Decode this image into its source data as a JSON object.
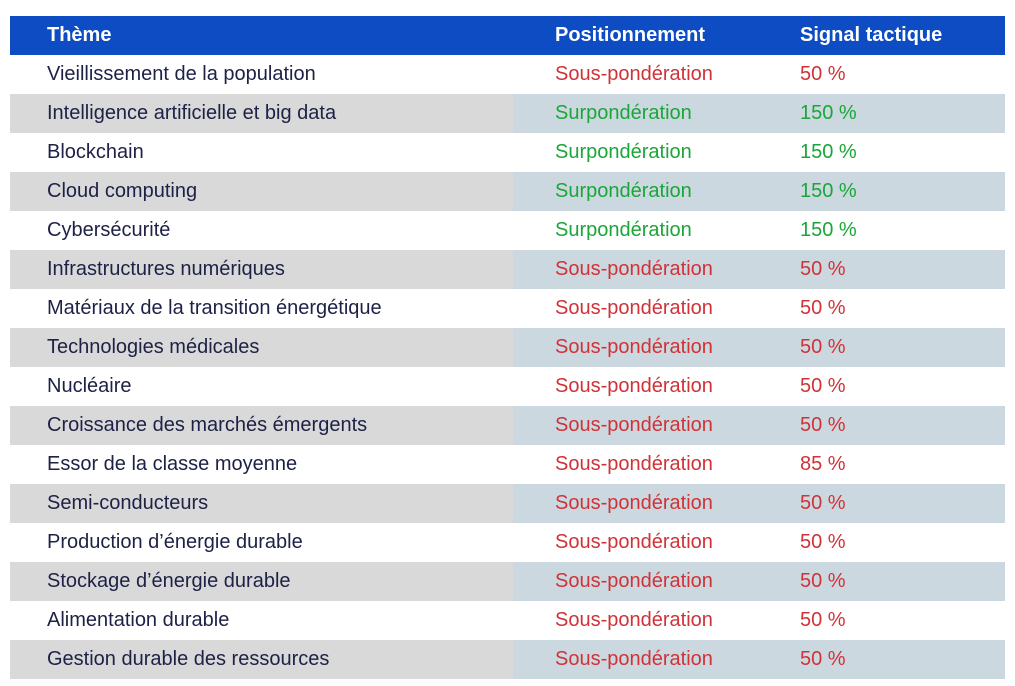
{
  "table": {
    "columns": [
      {
        "key": "theme",
        "label": "Thème"
      },
      {
        "key": "positionnement",
        "label": "Positionnement"
      },
      {
        "key": "signal",
        "label": "Signal tactique"
      }
    ],
    "rows": [
      {
        "theme": "Vieillissement de la population",
        "positionnement": "Sous-pondération",
        "signal": "50 %",
        "status": "under"
      },
      {
        "theme": "Intelligence artificielle et big data",
        "positionnement": "Surpondération",
        "signal": "150 %",
        "status": "over"
      },
      {
        "theme": "Blockchain",
        "positionnement": "Surpondération",
        "signal": "150 %",
        "status": "over"
      },
      {
        "theme": "Cloud computing",
        "positionnement": "Surpondération",
        "signal": "150 %",
        "status": "over"
      },
      {
        "theme": "Cybersécurité",
        "positionnement": "Surpondération",
        "signal": "150 %",
        "status": "over"
      },
      {
        "theme": "Infrastructures numériques",
        "positionnement": "Sous-pondération",
        "signal": "50 %",
        "status": "under"
      },
      {
        "theme": "Matériaux de la transition énergétique",
        "positionnement": "Sous-pondération",
        "signal": "50 %",
        "status": "under"
      },
      {
        "theme": "Technologies médicales",
        "positionnement": "Sous-pondération",
        "signal": "50 %",
        "status": "under"
      },
      {
        "theme": "Nucléaire",
        "positionnement": "Sous-pondération",
        "signal": "50 %",
        "status": "under"
      },
      {
        "theme": "Croissance des marchés émergents",
        "positionnement": "Sous-pondération",
        "signal": "50 %",
        "status": "under"
      },
      {
        "theme": "Essor de la classe moyenne",
        "positionnement": "Sous-pondération",
        "signal": "85 %",
        "status": "under"
      },
      {
        "theme": "Semi-conducteurs",
        "positionnement": "Sous-pondération",
        "signal": "50 %",
        "status": "under"
      },
      {
        "theme": "Production d’énergie durable",
        "positionnement": "Sous-pondération",
        "signal": "50 %",
        "status": "under"
      },
      {
        "theme": "Stockage d’énergie durable",
        "positionnement": "Sous-pondération",
        "signal": "50 %",
        "status": "under"
      },
      {
        "theme": "Alimentation durable",
        "positionnement": "Sous-pondération",
        "signal": "50 %",
        "status": "under"
      },
      {
        "theme": "Gestion durable des ressources",
        "positionnement": "Sous-pondération",
        "signal": "50 %",
        "status": "under"
      }
    ]
  },
  "colors": {
    "header_bg": "#0d4cc3",
    "header_text": "#ffffff",
    "theme_text": "#1d2145",
    "under": "#d03238",
    "over": "#1aa639",
    "alt_theme_bg": "#d9d9d9",
    "alt_right_bg": "#ccd8df",
    "row_bg": "#ffffff"
  }
}
